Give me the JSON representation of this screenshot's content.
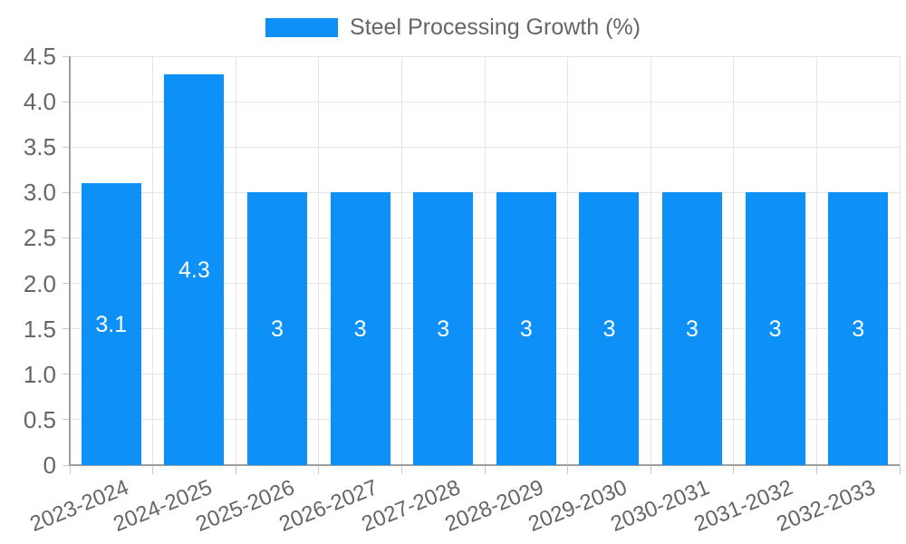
{
  "chart_data": {
    "type": "bar",
    "title": "Steel Processing Growth (%)",
    "legend": {
      "label": "Steel Processing Growth (%)",
      "position": "top"
    },
    "categories": [
      "2023-2024",
      "2024-2025",
      "2025-2026",
      "2026-2027",
      "2027-2028",
      "2028-2029",
      "2029-2030",
      "2030-2031",
      "2031-2032",
      "2032-2033"
    ],
    "series": [
      {
        "name": "Steel Processing Growth (%)",
        "values": [
          3.1,
          4.3,
          3,
          3,
          3,
          3,
          3,
          3,
          3,
          3
        ],
        "value_labels": [
          "3.1",
          "4.3",
          "3",
          "3",
          "3",
          "3",
          "3",
          "3",
          "3",
          "3"
        ]
      }
    ],
    "xlabel": "",
    "ylabel": "",
    "ylim": [
      0,
      4.5
    ],
    "yticks": [
      {
        "value": 0,
        "label": "0"
      },
      {
        "value": 0.5,
        "label": "0.5"
      },
      {
        "value": 1,
        "label": "1.0"
      },
      {
        "value": 1.5,
        "label": "1.5"
      },
      {
        "value": 2,
        "label": "2.0"
      },
      {
        "value": 2.5,
        "label": "2.5"
      },
      {
        "value": 3,
        "label": "3.0"
      },
      {
        "value": 3.5,
        "label": "3.5"
      },
      {
        "value": 4,
        "label": "4.0"
      },
      {
        "value": 4.5,
        "label": "4.5"
      }
    ],
    "grid": true,
    "colors": {
      "bar": "#0d90f8",
      "value_label": "#ffffff",
      "gridline": "#e5e5e5",
      "tick_mark": "#c9c9c9",
      "axis_line": "#9e9e9e",
      "tick_text": "#666666",
      "background": "#ffffff"
    }
  }
}
